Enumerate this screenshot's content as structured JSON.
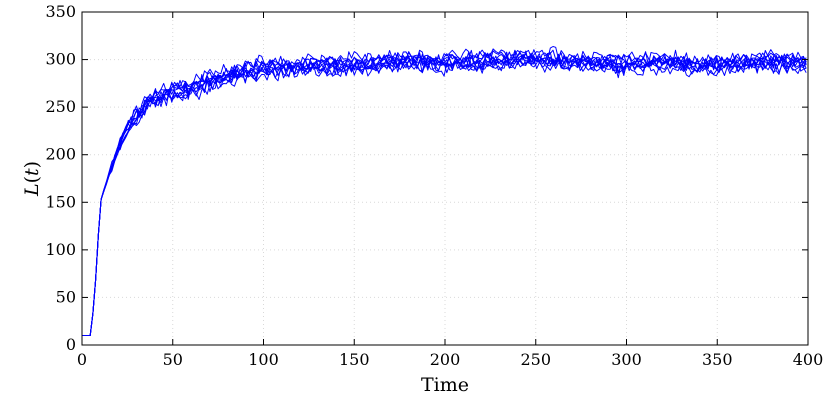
{
  "chart_data": {
    "type": "line",
    "title": "",
    "xlabel": "Time",
    "ylabel": "L(t)",
    "ylabel_parts": {
      "letter": "L",
      "open": "(",
      "var": "t",
      "close": ")"
    },
    "xlim": [
      0,
      400
    ],
    "ylim": [
      0,
      350
    ],
    "xticks": [
      0,
      50,
      100,
      150,
      200,
      250,
      300,
      350,
      400
    ],
    "yticks": [
      0,
      50,
      100,
      150,
      200,
      250,
      300,
      350
    ],
    "grid": true,
    "legend": "none",
    "series_color": "#0000ff",
    "x": [
      0,
      3,
      5,
      8,
      10,
      15,
      20,
      25,
      30,
      35,
      40,
      50,
      60,
      70,
      80,
      90,
      100,
      120,
      140,
      160,
      180,
      200,
      220,
      240,
      260,
      280,
      300,
      320,
      340,
      360,
      380,
      400
    ],
    "series": [
      {
        "values": [
          10,
          10,
          10,
          80,
          150,
          180,
          208,
          228,
          242,
          252,
          258,
          266,
          270,
          278,
          284,
          286,
          290,
          292,
          293,
          295,
          298,
          297,
          298,
          300,
          299,
          296,
          294,
          297,
          293,
          296,
          298,
          296
        ]
      },
      {
        "values": [
          10,
          10,
          10,
          80,
          150,
          178,
          203,
          224,
          238,
          250,
          256,
          262,
          265,
          272,
          280,
          283,
          287,
          288,
          290,
          292,
          294,
          293,
          294,
          296,
          297,
          293,
          291,
          293,
          290,
          292,
          294,
          293
        ]
      },
      {
        "values": [
          10,
          10,
          10,
          80,
          150,
          181,
          210,
          232,
          245,
          255,
          262,
          270,
          275,
          282,
          288,
          291,
          295,
          297,
          298,
          300,
          302,
          301,
          303,
          305,
          304,
          300,
          298,
          301,
          298,
          300,
          302,
          300
        ]
      },
      {
        "values": [
          10,
          10,
          10,
          80,
          150,
          179,
          206,
          226,
          240,
          251,
          257,
          264,
          268,
          276,
          282,
          285,
          289,
          291,
          292,
          294,
          297,
          296,
          297,
          299,
          298,
          295,
          293,
          296,
          292,
          295,
          297,
          295
        ]
      },
      {
        "values": [
          10,
          10,
          10,
          80,
          150,
          182,
          212,
          233,
          247,
          257,
          264,
          272,
          277,
          284,
          290,
          293,
          297,
          299,
          300,
          302,
          304,
          303,
          305,
          307,
          306,
          302,
          300,
          303,
          300,
          302,
          304,
          302
        ]
      },
      {
        "values": [
          10,
          10,
          10,
          80,
          150,
          177,
          201,
          222,
          236,
          248,
          254,
          260,
          263,
          270,
          278,
          281,
          285,
          286,
          288,
          290,
          292,
          291,
          292,
          294,
          295,
          291,
          289,
          291,
          288,
          290,
          292,
          291
        ]
      },
      {
        "values": [
          10,
          10,
          10,
          80,
          150,
          180,
          207,
          227,
          241,
          252,
          259,
          267,
          271,
          279,
          285,
          288,
          292,
          294,
          295,
          297,
          299,
          298,
          300,
          302,
          301,
          297,
          295,
          298,
          295,
          297,
          299,
          297
        ]
      },
      {
        "values": [
          10,
          10,
          10,
          80,
          150,
          181,
          209,
          230,
          244,
          254,
          261,
          269,
          273,
          281,
          287,
          290,
          294,
          296,
          297,
          299,
          301,
          300,
          301,
          303,
          302,
          299,
          297,
          300,
          296,
          299,
          301,
          298
        ]
      },
      {
        "values": [
          10,
          10,
          10,
          80,
          150,
          179,
          205,
          225,
          239,
          250,
          256,
          263,
          267,
          275,
          281,
          284,
          288,
          289,
          291,
          293,
          295,
          294,
          296,
          298,
          296,
          294,
          292,
          294,
          291,
          293,
          296,
          294
        ]
      },
      {
        "values": [
          10,
          10,
          10,
          80,
          150,
          180,
          208,
          229,
          243,
          253,
          260,
          268,
          272,
          280,
          286,
          289,
          293,
          295,
          296,
          298,
          300,
          299,
          300,
          302,
          300,
          298,
          296,
          299,
          294,
          298,
          300,
          297
        ]
      }
    ]
  }
}
